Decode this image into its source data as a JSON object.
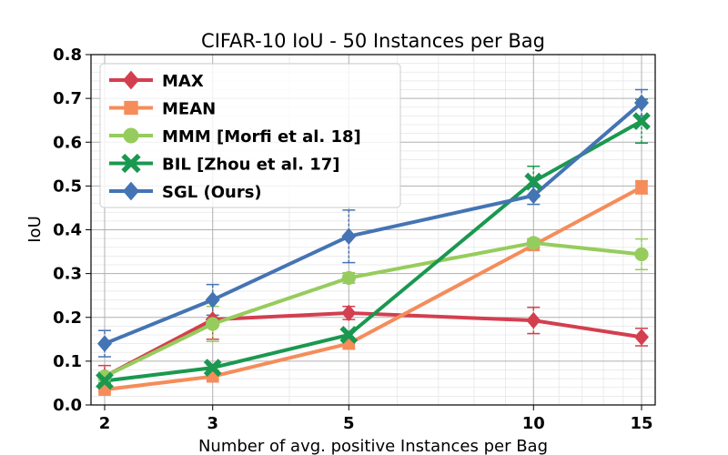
{
  "chart_data": {
    "type": "line",
    "title": "CIFAR-10 IoU - 50 Instances per Bag",
    "xlabel": "Number of avg. positive Instances per Bag",
    "ylabel": "IoU",
    "x": [
      2,
      3,
      5,
      10,
      15
    ],
    "x_tick_labels": [
      "2",
      "3",
      "5",
      "10",
      "15"
    ],
    "y_ticks": [
      0.0,
      0.1,
      0.2,
      0.3,
      0.4,
      0.5,
      0.6,
      0.7,
      0.8
    ],
    "y_tick_labels": [
      "0.0",
      "0.1",
      "0.2",
      "0.3",
      "0.4",
      "0.5",
      "0.6",
      "0.7",
      "0.8"
    ],
    "ylim": [
      0.0,
      0.8
    ],
    "grid": true,
    "legend_position": "top-left",
    "series": [
      {
        "name": "MAX",
        "color": "#d33f4f",
        "marker": "diamond",
        "values": [
          0.065,
          0.195,
          0.21,
          0.193,
          0.155
        ],
        "errors": [
          0.025,
          0.045,
          0.015,
          0.03,
          0.02
        ]
      },
      {
        "name": "MEAN",
        "color": "#f58c5a",
        "marker": "square",
        "values": [
          0.035,
          0.065,
          0.14,
          0.365,
          0.497
        ],
        "errors": [
          0.005,
          0.008,
          0.012,
          0.012,
          0.015
        ]
      },
      {
        "name": "MMM [Morfi et al. 18]",
        "color": "#96cc5d",
        "marker": "circle",
        "values": [
          0.065,
          0.185,
          0.29,
          0.37,
          0.344
        ],
        "errors": [
          0.01,
          0.04,
          0.012,
          0.01,
          0.035
        ]
      },
      {
        "name": "BIL [Zhou et al. 17]",
        "color": "#1a9850",
        "marker": "x",
        "values": [
          0.055,
          0.085,
          0.16,
          0.51,
          0.648
        ],
        "errors": [
          0.005,
          0.006,
          0.008,
          0.035,
          0.05
        ]
      },
      {
        "name": "SGL (Ours)",
        "color": "#4574b4",
        "marker": "diamond",
        "values": [
          0.14,
          0.24,
          0.385,
          0.478,
          0.69
        ],
        "errors": [
          0.03,
          0.035,
          0.06,
          0.02,
          0.03
        ]
      }
    ]
  }
}
